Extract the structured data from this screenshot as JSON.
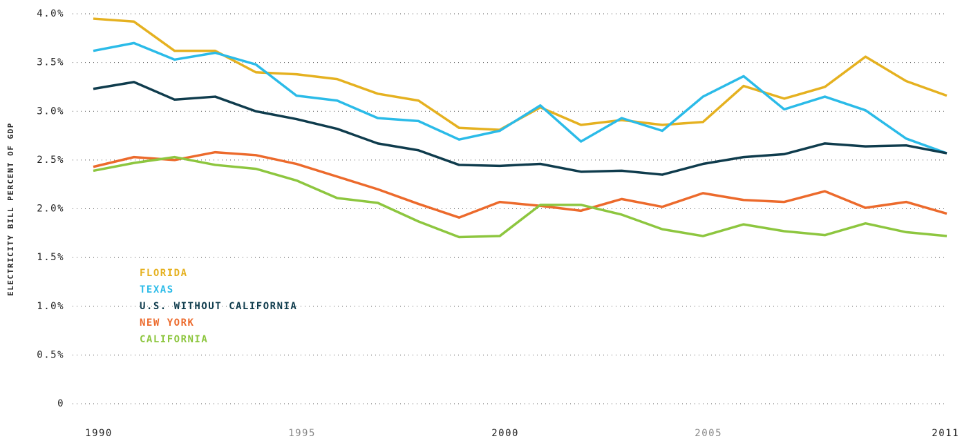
{
  "chart_data": {
    "type": "line",
    "y_label": "ELECTRICITY BILL PERCENT OF GDP",
    "x": [
      1990,
      1991,
      1992,
      1993,
      1994,
      1995,
      1996,
      1997,
      1998,
      1999,
      2000,
      2001,
      2002,
      2003,
      2004,
      2005,
      2006,
      2007,
      2008,
      2009,
      2010,
      2011
    ],
    "xlim": [
      1990,
      2011
    ],
    "xticks": [
      1990,
      1995,
      2000,
      2005,
      2011
    ],
    "ylim": [
      0,
      4
    ],
    "yticks": [
      0,
      {
        "value": 0.5,
        "label": "0.5%"
      },
      {
        "value": 1,
        "label": "1.0%"
      },
      {
        "value": 1.5,
        "label": "1.5%"
      },
      {
        "value": 2,
        "label": "2.0%"
      },
      {
        "value": 2.5,
        "label": "2.5%"
      },
      {
        "value": 3,
        "label": "3.0%"
      },
      {
        "value": 3.5,
        "label": "3.5%"
      },
      {
        "value": 4,
        "label": "4.0%"
      }
    ],
    "grid": true,
    "legend": "lower-left",
    "series": [
      {
        "name": "FLORIDA",
        "color": "#e5b120",
        "values": [
          3.95,
          3.92,
          3.62,
          3.62,
          3.4,
          3.38,
          3.33,
          3.18,
          3.11,
          2.83,
          2.81,
          3.04,
          2.86,
          2.91,
          2.86,
          2.89,
          3.26,
          3.13,
          3.25,
          3.56,
          3.31,
          3.16
        ]
      },
      {
        "name": "TEXAS",
        "color": "#2bbbe8",
        "values": [
          3.62,
          3.7,
          3.53,
          3.6,
          3.48,
          3.16,
          3.11,
          2.93,
          2.9,
          2.71,
          2.8,
          3.06,
          2.69,
          2.93,
          2.8,
          3.15,
          3.36,
          3.02,
          3.15,
          3.01,
          2.72,
          2.57
        ]
      },
      {
        "name": "U.S. WITHOUT CALIFORNIA",
        "color": "#0f3c4d",
        "values": [
          3.23,
          3.3,
          3.12,
          3.15,
          3.0,
          2.92,
          2.82,
          2.67,
          2.6,
          2.45,
          2.44,
          2.46,
          2.38,
          2.39,
          2.35,
          2.46,
          2.53,
          2.56,
          2.67,
          2.64,
          2.65,
          2.57
        ]
      },
      {
        "name": "NEW YORK",
        "color": "#ec6a2c",
        "values": [
          2.43,
          2.53,
          2.5,
          2.58,
          2.55,
          2.46,
          2.33,
          2.2,
          2.05,
          1.91,
          2.07,
          2.03,
          1.98,
          2.1,
          2.02,
          2.16,
          2.09,
          2.07,
          2.18,
          2.01,
          2.07,
          1.95
        ]
      },
      {
        "name": "CALIFORNIA",
        "color": "#8dc63f",
        "values": [
          2.39,
          2.47,
          2.53,
          2.45,
          2.41,
          2.29,
          2.11,
          2.06,
          1.87,
          1.71,
          1.72,
          2.04,
          2.04,
          1.94,
          1.79,
          1.72,
          1.84,
          1.77,
          1.73,
          1.85,
          1.76,
          1.72
        ]
      }
    ]
  }
}
